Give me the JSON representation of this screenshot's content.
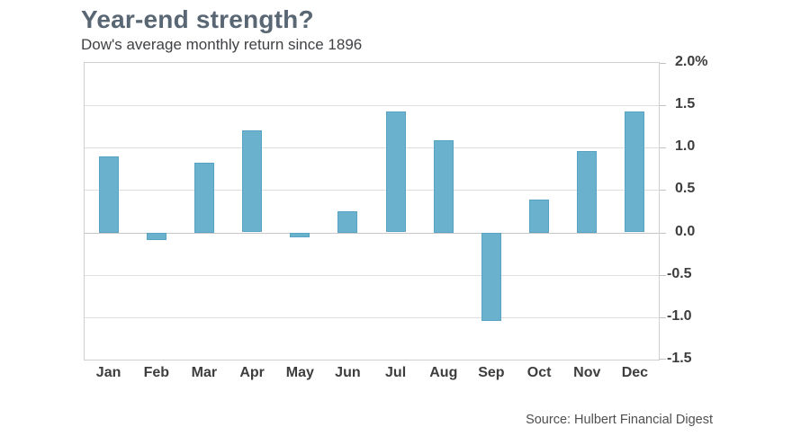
{
  "header": {
    "title": "Year-end strength?",
    "subtitle": "Dow's average monthly return since 1896"
  },
  "footer": {
    "source": "Source: Hulbert Financial Digest"
  },
  "colors": {
    "bar_fill": "#69b1cc",
    "bar_border": "#58a4c2",
    "title_text": "#596673",
    "axis_text": "#3d3d3d",
    "gridline": "#dfdfdf",
    "zero_line": "#c6c6c6",
    "plot_border": "#cfcfcf"
  },
  "chart_data": {
    "type": "bar",
    "title": "Year-end strength?",
    "subtitle": "Dow's average monthly return since 1896",
    "categories": [
      "Jan",
      "Feb",
      "Mar",
      "Apr",
      "May",
      "Jun",
      "Jul",
      "Aug",
      "Sep",
      "Oct",
      "Nov",
      "Dec"
    ],
    "values": [
      0.9,
      -0.09,
      0.82,
      1.2,
      -0.06,
      0.25,
      1.43,
      1.09,
      -1.04,
      0.39,
      0.96,
      1.43
    ],
    "unit": "%",
    "ylim": [
      -1.5,
      2.0
    ],
    "y_ticks": [
      2.0,
      1.5,
      1.0,
      0.5,
      0.0,
      -0.5,
      -1.0,
      -1.5
    ],
    "y_tick_labels": [
      "2.0%",
      "1.5",
      "1.0",
      "0.5",
      "0.0",
      "-0.5",
      "-1.0",
      "-1.5"
    ],
    "grid": true,
    "legend": false,
    "y_axis_position": "right",
    "source": "Source: Hulbert Financial Digest"
  }
}
